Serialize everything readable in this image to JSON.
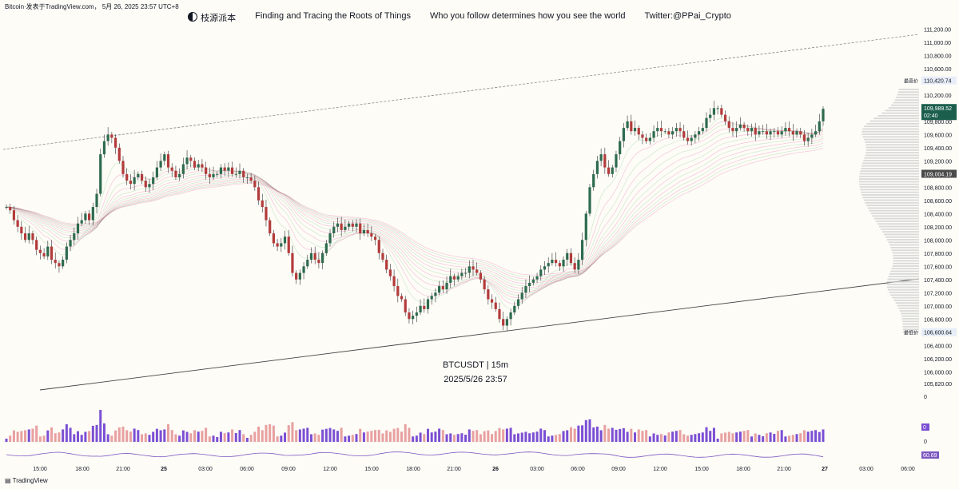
{
  "caption": "Bitcoin·发表于TradingView.com， 5月 26, 2025 23:57 UTC+8",
  "header": {
    "brand": "枝源派本",
    "slogan1": "Finding and Tracing the Roots of Things",
    "slogan2": "Who you follow determines how you see the world",
    "twitter": "Twitter:@PPai_Crypto"
  },
  "symbol_label": "BTCUSDT | 15m",
  "date_label": "2025/5/26 23:57",
  "footer_brand": "TradingView",
  "colors": {
    "up": "#26a69a",
    "up_body": "#2e6b4e",
    "down": "#b33b3b",
    "ribbon_pink": "#e91e8c",
    "ribbon_green": "#4caf50",
    "volume_up": "#7b4fd4",
    "volume_down": "#e8a0a0",
    "rsi": "#7e57c2",
    "price_badge": "#1b5e4b",
    "ref_badge": "#4a4a4a"
  },
  "chart_data": {
    "type": "candlestick",
    "title": "BTCUSDT | 15m",
    "y_axis": {
      "range": [
        105700,
        111350
      ],
      "tick_values": [
        111200,
        111000,
        110800,
        110600,
        110420.74,
        110200,
        110000,
        109800,
        109600,
        109400,
        109200,
        109004.19,
        108800,
        108600,
        108400,
        108200,
        108000,
        107800,
        107600,
        107400,
        107200,
        107000,
        106800,
        106600.64,
        106400,
        106200,
        106000,
        105820
      ],
      "tick_labels": [
        "111,200.00",
        "111,000.00",
        "110,800.00",
        "110,600.00",
        "110,420.74",
        "110,200.00",
        "110,000.00",
        "109,800.00",
        "109,600.00",
        "109,400.00",
        "109,200.00",
        "109,004.19",
        "108,800.00",
        "108,600.00",
        "108,400.00",
        "108,200.00",
        "108,000.00",
        "107,800.00",
        "107,600.00",
        "107,400.00",
        "107,200.00",
        "107,000.00",
        "106,800.00",
        "106,600.64",
        "106,400.00",
        "106,200.00",
        "106,000.00",
        "105,820.00"
      ]
    },
    "last_price": {
      "value": 109989.52,
      "label": "109,989.52",
      "countdown": "02:40"
    },
    "highest": {
      "tag": "最高价",
      "value": 110420.74,
      "label": "110,420.74"
    },
    "lowest": {
      "tag": "最低价",
      "value": 106600.64,
      "label": "106,600.64"
    },
    "ref_price": {
      "value": 109004.19,
      "label": "109,004.19"
    },
    "x_axis": {
      "labels": [
        "15:00",
        "18:00",
        "21:00",
        "25",
        "03:00",
        "06:00",
        "09:00",
        "12:00",
        "15:00",
        "18:00",
        "21:00",
        "26",
        "03:00",
        "06:00",
        "09:00",
        "12:00",
        "15:00",
        "18:00",
        "21:00",
        "27",
        "03:00",
        "06:00"
      ],
      "bold_labels": [
        "25",
        "26",
        "27"
      ]
    },
    "closes": [
      108500,
      108450,
      108300,
      108200,
      108100,
      108000,
      108100,
      108000,
      107850,
      107800,
      107750,
      107900,
      107700,
      107650,
      107600,
      107700,
      107900,
      108000,
      108100,
      108250,
      108300,
      108400,
      108300,
      108500,
      108700,
      109300,
      109500,
      109600,
      109550,
      109400,
      109200,
      109000,
      108900,
      108850,
      108950,
      109000,
      108900,
      108800,
      108850,
      108950,
      109100,
      109200,
      109300,
      109100,
      109050,
      108950,
      109000,
      109150,
      109250,
      109200,
      109100,
      109150,
      109100,
      109000,
      108950,
      109000,
      109000,
      109100,
      109050,
      109100,
      109000,
      109000,
      109050,
      108950,
      108950,
      108900,
      108800,
      108600,
      108500,
      108300,
      108100,
      107950,
      107900,
      107950,
      108050,
      107800,
      107500,
      107400,
      107500,
      107600,
      107700,
      107800,
      107700,
      107650,
      107800,
      107950,
      108100,
      108200,
      108250,
      108150,
      108200,
      108250,
      108200,
      108250,
      108100,
      108150,
      108100,
      108050,
      108000,
      107800,
      107700,
      107550,
      107450,
      107300,
      107150,
      107100,
      106900,
      106800,
      106850,
      106900,
      107000,
      106950,
      107100,
      107150,
      107200,
      107300,
      107250,
      107350,
      107450,
      107400,
      107450,
      107500,
      107500,
      107600,
      107550,
      107500,
      107400,
      107250,
      107100,
      107050,
      106950,
      106800,
      106700,
      106800,
      106900,
      107000,
      107100,
      107200,
      107300,
      107350,
      107400,
      107450,
      107550,
      107600,
      107650,
      107700,
      107650,
      107600,
      107700,
      107800,
      107650,
      107550,
      107700,
      108000,
      108400,
      108800,
      109000,
      109200,
      109300,
      109100,
      109000,
      109100,
      109300,
      109500,
      109700,
      109800,
      109650,
      109700,
      109600,
      109550,
      109500,
      109550,
      109650,
      109700,
      109650,
      109650,
      109600,
      109650,
      109700,
      109650,
      109550,
      109500,
      109550,
      109600,
      109650,
      109700,
      109850,
      109900,
      110000,
      110000,
      109900,
      109800,
      109700,
      109650,
      109700,
      109750,
      109700,
      109650,
      109700,
      109600,
      109650,
      109650,
      109600,
      109650,
      109650,
      109600,
      109650,
      109700,
      109650,
      109600,
      109650,
      109600,
      109500,
      109550,
      109600,
      109650,
      109800,
      109990
    ],
    "volume_profile_note": "right-side horizontal volume histogram"
  },
  "volume_panel": {
    "axis_label_top": "0",
    "badge": "0"
  },
  "rsi_panel": {
    "axis_label_top": "0",
    "value": "60.69"
  }
}
